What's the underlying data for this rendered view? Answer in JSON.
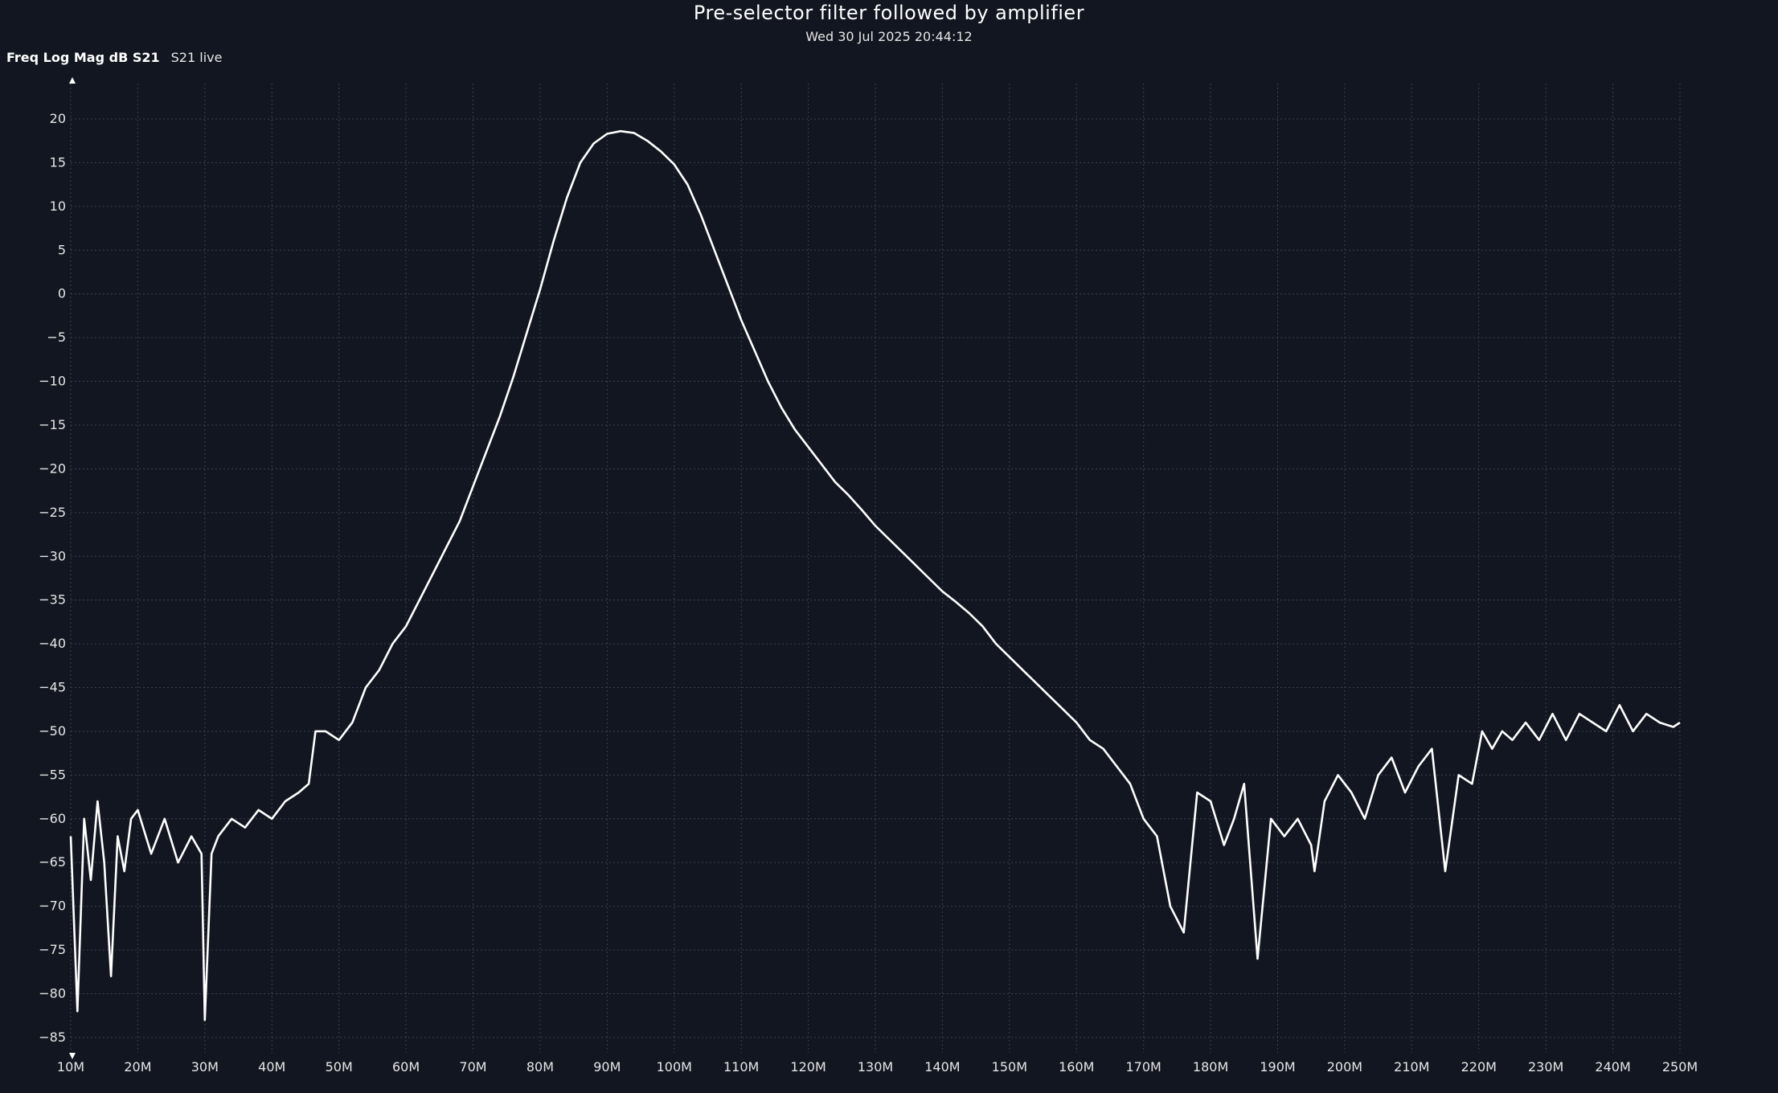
{
  "header": {
    "title": "Pre-selector filter followed by amplifier",
    "timestamp": "Wed 30 Jul 2025 20:44:12"
  },
  "trace": {
    "name": "Freq Log Mag dB S21",
    "status": "S21 live"
  },
  "colors": {
    "background": "#111620",
    "trace": "#ffffff",
    "grid": "#3a4150",
    "text": "#e6e6e6"
  },
  "chart_data": {
    "type": "line",
    "title": "Pre-selector filter followed by amplifier",
    "subtitle": "Wed 30 Jul 2025 20:44:12",
    "xlabel": "",
    "ylabel": "",
    "x_unit": "Hz",
    "xlim": [
      10000000,
      250000000
    ],
    "ylim": [
      -87,
      23
    ],
    "grid": true,
    "x_ticks": [
      10000000,
      20000000,
      30000000,
      40000000,
      50000000,
      60000000,
      70000000,
      80000000,
      90000000,
      100000000,
      110000000,
      120000000,
      130000000,
      140000000,
      150000000,
      160000000,
      170000000,
      180000000,
      190000000,
      200000000,
      210000000,
      220000000,
      230000000,
      240000000,
      250000000
    ],
    "x_tick_labels": [
      "10M",
      "20M",
      "30M",
      "40M",
      "50M",
      "60M",
      "70M",
      "80M",
      "90M",
      "100M",
      "110M",
      "120M",
      "130M",
      "140M",
      "150M",
      "160M",
      "170M",
      "180M",
      "190M",
      "200M",
      "210M",
      "220M",
      "230M",
      "240M",
      "250M"
    ],
    "y_ticks": [
      20,
      15,
      10,
      5,
      0,
      -5,
      -10,
      -15,
      -20,
      -25,
      -30,
      -35,
      -40,
      -45,
      -50,
      -55,
      -60,
      -65,
      -70,
      -75,
      -80,
      -85
    ],
    "y_tick_labels": [
      "20",
      "15",
      "10",
      "5",
      "0",
      "−5",
      "−10",
      "−15",
      "−20",
      "−25",
      "−30",
      "−35",
      "−40",
      "−45",
      "−50",
      "−55",
      "−60",
      "−65",
      "−70",
      "−75",
      "−80",
      "−85"
    ],
    "series": [
      {
        "name": "S21",
        "x": [
          10000000,
          11000000,
          12000000,
          13000000,
          14000000,
          15000000,
          16000000,
          17000000,
          18000000,
          19000000,
          20000000,
          22000000,
          24000000,
          26000000,
          28000000,
          29500000,
          30000000,
          31000000,
          32000000,
          34000000,
          36000000,
          38000000,
          40000000,
          42000000,
          44000000,
          45500000,
          46500000,
          48000000,
          50000000,
          52000000,
          54000000,
          56000000,
          58000000,
          60000000,
          62000000,
          64000000,
          66000000,
          68000000,
          70000000,
          72000000,
          74000000,
          76000000,
          78000000,
          80000000,
          82000000,
          84000000,
          86000000,
          88000000,
          90000000,
          92000000,
          94000000,
          96000000,
          98000000,
          100000000,
          102000000,
          104000000,
          106000000,
          108000000,
          110000000,
          112000000,
          114000000,
          116000000,
          118000000,
          120000000,
          122000000,
          124000000,
          126000000,
          128000000,
          130000000,
          132000000,
          134000000,
          136000000,
          138000000,
          140000000,
          142000000,
          144000000,
          146000000,
          148000000,
          150000000,
          152000000,
          154000000,
          156000000,
          158000000,
          160000000,
          162000000,
          164000000,
          166000000,
          168000000,
          170000000,
          172000000,
          174000000,
          176000000,
          178000000,
          180000000,
          182000000,
          183500000,
          185000000,
          187000000,
          189000000,
          191000000,
          193000000,
          195000000,
          195500000,
          197000000,
          199000000,
          201000000,
          203000000,
          205000000,
          207000000,
          209000000,
          211000000,
          213000000,
          215000000,
          217000000,
          219000000,
          220500000,
          222000000,
          223500000,
          225000000,
          227000000,
          229000000,
          231000000,
          233000000,
          235000000,
          237000000,
          239000000,
          241000000,
          243000000,
          245000000,
          247000000,
          249000000,
          250000000
        ],
        "values": [
          -62,
          -82,
          -60,
          -67,
          -58,
          -65,
          -78,
          -62,
          -66,
          -60,
          -59,
          -64,
          -60,
          -65,
          -62,
          -64,
          -83,
          -64,
          -62,
          -60,
          -61,
          -59,
          -60,
          -58,
          -57,
          -56,
          -50,
          -50,
          -51,
          -49,
          -45,
          -43,
          -40,
          -38,
          -35,
          -32,
          -29,
          -26,
          -22,
          -18,
          -14,
          -9.5,
          -4.5,
          0.5,
          6,
          11,
          15,
          17.2,
          18.3,
          18.6,
          18.4,
          17.5,
          16.3,
          14.8,
          12.5,
          9,
          5,
          1,
          -3,
          -6.5,
          -10,
          -13,
          -15.5,
          -17.5,
          -19.5,
          -21.5,
          -23,
          -24.7,
          -26.5,
          -28,
          -29.5,
          -31,
          -32.5,
          -34,
          -35.2,
          -36.5,
          -38,
          -40,
          -41.5,
          -43,
          -44.5,
          -46,
          -47.5,
          -49,
          -51,
          -52,
          -54,
          -56,
          -60,
          -62,
          -70,
          -73,
          -57,
          -58,
          -63,
          -60,
          -56,
          -76,
          -60,
          -62,
          -60,
          -63,
          -66,
          -58,
          -55,
          -57,
          -60,
          -55,
          -53,
          -57,
          -54,
          -52,
          -66,
          -55,
          -56,
          -50,
          -52,
          -50,
          -51,
          -49,
          -51,
          -48,
          -51,
          -48,
          -49,
          -50,
          -47,
          -50,
          -48,
          -49,
          -49.5,
          -49
        ]
      }
    ]
  }
}
